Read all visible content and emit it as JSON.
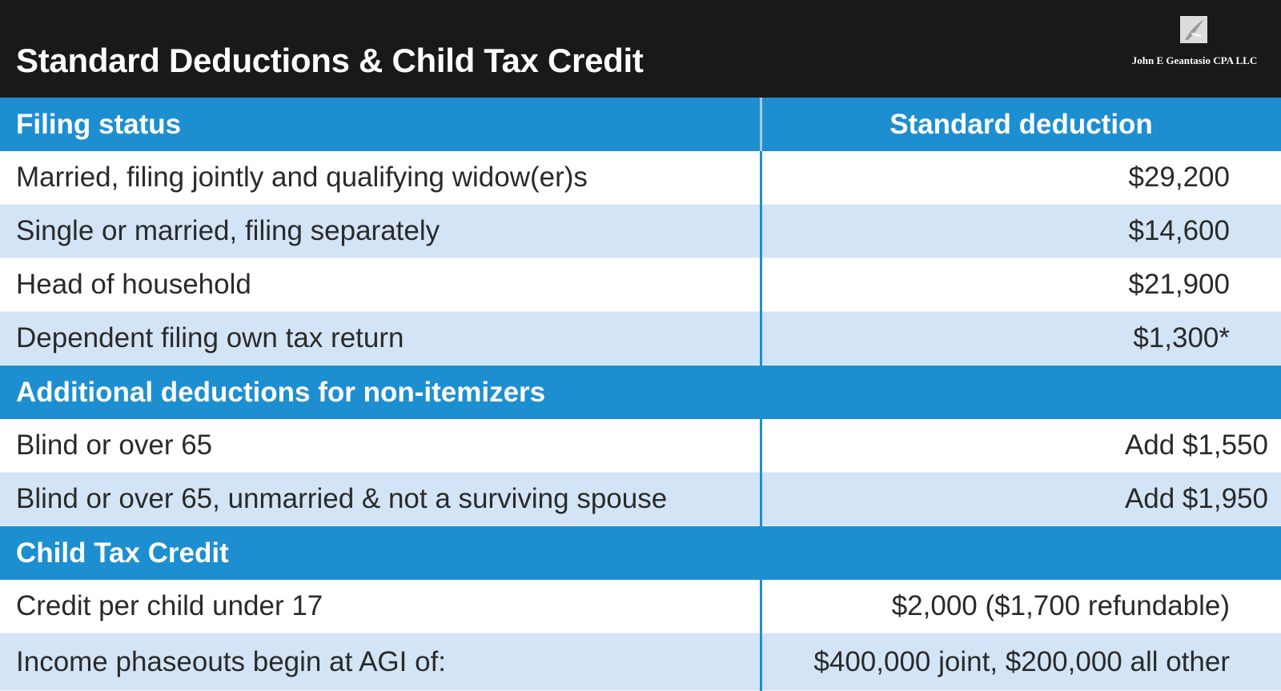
{
  "header": {
    "title": "Standard Deductions & Child Tax Credit",
    "firm_name": "John E Geantasio CPA LLC",
    "logo_icon": "quill-logo-icon"
  },
  "colors": {
    "header_bg": "#1b1819",
    "section_bg": "#1d8fd1",
    "row_shaded": "#d3e4f6",
    "row_white": "#ffffff"
  },
  "table": {
    "column_headers": [
      "Filing status",
      "Standard deduction"
    ],
    "standard_rows": [
      {
        "status": "Married, filing jointly and qualifying widow(er)s",
        "amount": "$29,200"
      },
      {
        "status": "Single or married, filing separately",
        "amount": "$14,600"
      },
      {
        "status": "Head of household",
        "amount": "$21,900"
      },
      {
        "status": "Dependent filing own tax return",
        "amount": "$1,300*"
      }
    ],
    "additional_section": {
      "heading": "Additional deductions for non-itemizers",
      "rows": [
        {
          "label": "Blind or over 65",
          "amount": "Add $1,550"
        },
        {
          "label": "Blind or over 65, unmarried & not a surviving spouse",
          "amount": "Add $1,950"
        }
      ]
    },
    "child_credit_section": {
      "heading": "Child Tax Credit",
      "rows": [
        {
          "label": "Credit per child under 17",
          "amount": "$2,000  ($1,700 refundable)"
        },
        {
          "label": "Income phaseouts begin at AGI of:",
          "amount": "$400,000 joint, $200,000 all other"
        }
      ]
    }
  }
}
